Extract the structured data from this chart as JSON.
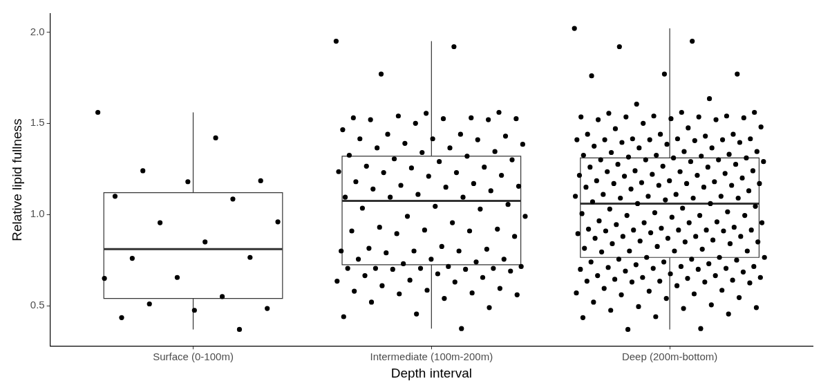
{
  "chart_data": {
    "type": "box",
    "xlabel": "Depth interval",
    "ylabel": "Relative lipid fullness",
    "categories": [
      "Surface (0-100m)",
      "Intermediate (100m-200m)",
      "Deep (200m-bottom)"
    ],
    "boxes": [
      {
        "low": 0.37,
        "q1": 0.54,
        "median": 0.81,
        "q3": 1.12,
        "high": 1.56
      },
      {
        "low": 0.375,
        "q1": 0.725,
        "median": 1.075,
        "q3": 1.32,
        "high": 1.95
      },
      {
        "low": 0.37,
        "q1": 0.765,
        "median": 1.06,
        "q3": 1.31,
        "high": 2.02
      }
    ],
    "series": [
      {
        "type": "scatter",
        "color": "#000000",
        "x": [
          "Surface (0-100m)",
          "Surface (0-100m)",
          "Surface (0-100m)",
          "Surface (0-100m)",
          "Surface (0-100m)",
          "Surface (0-100m)",
          "Surface (0-100m)",
          "Surface (0-100m)",
          "Surface (0-100m)",
          "Surface (0-100m)",
          "Surface (0-100m)",
          "Surface (0-100m)",
          "Surface (0-100m)",
          "Surface (0-100m)",
          "Surface (0-100m)",
          "Surface (0-100m)",
          "Surface (0-100m)",
          "Surface (0-100m)",
          "Surface (0-100m)",
          "Surface (0-100m)"
        ],
        "values": [
          1.56,
          1.42,
          1.24,
          1.185,
          1.18,
          1.1,
          1.085,
          0.955,
          0.96,
          0.85,
          0.76,
          0.765,
          0.655,
          0.65,
          0.55,
          0.51,
          0.485,
          0.475,
          0.435,
          0.37
        ]
      },
      {
        "type": "scatter",
        "color": "#000000",
        "x": [
          "Intermediate (100m-200m)",
          "Intermediate (100m-200m)",
          "Intermediate (100m-200m)",
          "Intermediate (100m-200m)",
          "Intermediate (100m-200m)",
          "Intermediate (100m-200m)",
          "Intermediate (100m-200m)",
          "Intermediate (100m-200m)",
          "Intermediate (100m-200m)",
          "Intermediate (100m-200m)",
          "Intermediate (100m-200m)",
          "Intermediate (100m-200m)",
          "Intermediate (100m-200m)",
          "Intermediate (100m-200m)",
          "Intermediate (100m-200m)",
          "Intermediate (100m-200m)",
          "Intermediate (100m-200m)",
          "Intermediate (100m-200m)",
          "Intermediate (100m-200m)",
          "Intermediate (100m-200m)",
          "Intermediate (100m-200m)",
          "Intermediate (100m-200m)",
          "Intermediate (100m-200m)",
          "Intermediate (100m-200m)",
          "Intermediate (100m-200m)",
          "Intermediate (100m-200m)",
          "Intermediate (100m-200m)",
          "Intermediate (100m-200m)",
          "Intermediate (100m-200m)",
          "Intermediate (100m-200m)",
          "Intermediate (100m-200m)",
          "Intermediate (100m-200m)",
          "Intermediate (100m-200m)",
          "Intermediate (100m-200m)",
          "Intermediate (100m-200m)",
          "Intermediate (100m-200m)",
          "Intermediate (100m-200m)",
          "Intermediate (100m-200m)",
          "Intermediate (100m-200m)",
          "Intermediate (100m-200m)",
          "Intermediate (100m-200m)",
          "Intermediate (100m-200m)",
          "Intermediate (100m-200m)",
          "Intermediate (100m-200m)",
          "Intermediate (100m-200m)",
          "Intermediate (100m-200m)",
          "Intermediate (100m-200m)",
          "Intermediate (100m-200m)",
          "Intermediate (100m-200m)",
          "Intermediate (100m-200m)",
          "Intermediate (100m-200m)",
          "Intermediate (100m-200m)",
          "Intermediate (100m-200m)",
          "Intermediate (100m-200m)",
          "Intermediate (100m-200m)",
          "Intermediate (100m-200m)",
          "Intermediate (100m-200m)",
          "Intermediate (100m-200m)",
          "Intermediate (100m-200m)",
          "Intermediate (100m-200m)",
          "Intermediate (100m-200m)",
          "Intermediate (100m-200m)",
          "Intermediate (100m-200m)",
          "Intermediate (100m-200m)",
          "Intermediate (100m-200m)",
          "Intermediate (100m-200m)",
          "Intermediate (100m-200m)",
          "Intermediate (100m-200m)",
          "Intermediate (100m-200m)",
          "Intermediate (100m-200m)",
          "Intermediate (100m-200m)",
          "Intermediate (100m-200m)",
          "Intermediate (100m-200m)",
          "Intermediate (100m-200m)",
          "Intermediate (100m-200m)",
          "Intermediate (100m-200m)",
          "Intermediate (100m-200m)",
          "Intermediate (100m-200m)",
          "Intermediate (100m-200m)",
          "Intermediate (100m-200m)",
          "Intermediate (100m-200m)",
          "Intermediate (100m-200m)",
          "Intermediate (100m-200m)",
          "Intermediate (100m-200m)",
          "Intermediate (100m-200m)",
          "Intermediate (100m-200m)",
          "Intermediate (100m-200m)",
          "Intermediate (100m-200m)",
          "Intermediate (100m-200m)",
          "Intermediate (100m-200m)",
          "Intermediate (100m-200m)",
          "Intermediate (100m-200m)",
          "Intermediate (100m-200m)",
          "Intermediate (100m-200m)",
          "Intermediate (100m-200m)",
          "Intermediate (100m-200m)",
          "Intermediate (100m-200m)",
          "Intermediate (100m-200m)",
          "Intermediate (100m-200m)",
          "Intermediate (100m-200m)",
          "Intermediate (100m-200m)",
          "Intermediate (100m-200m)",
          "Intermediate (100m-200m)",
          "Intermediate (100m-200m)"
        ],
        "values": [
          1.95,
          1.92,
          1.77,
          1.56,
          1.555,
          1.53,
          1.53,
          1.54,
          1.525,
          1.525,
          1.52,
          1.52,
          1.5,
          1.465,
          1.44,
          1.44,
          1.43,
          1.415,
          1.415,
          1.41,
          1.39,
          1.385,
          1.365,
          1.365,
          1.345,
          1.34,
          1.325,
          1.32,
          1.305,
          1.3,
          1.29,
          1.265,
          1.26,
          1.255,
          1.235,
          1.23,
          1.23,
          1.215,
          1.21,
          1.18,
          1.17,
          1.16,
          1.155,
          1.15,
          1.14,
          1.13,
          1.11,
          1.095,
          1.095,
          1.095,
          1.055,
          1.045,
          1.035,
          1.03,
          0.99,
          0.99,
          0.955,
          0.93,
          0.92,
          0.915,
          0.91,
          0.91,
          0.895,
          0.88,
          0.825,
          0.815,
          0.81,
          0.8,
          0.8,
          0.8,
          0.79,
          0.755,
          0.755,
          0.755,
          0.74,
          0.73,
          0.715,
          0.715,
          0.705,
          0.705,
          0.705,
          0.705,
          0.7,
          0.7,
          0.69,
          0.675,
          0.665,
          0.655,
          0.64,
          0.635,
          0.63,
          0.61,
          0.595,
          0.585,
          0.58,
          0.57,
          0.565,
          0.56,
          0.54,
          0.52,
          0.49,
          0.455,
          0.44,
          0.375
        ]
      },
      {
        "type": "scatter",
        "color": "#000000",
        "x": [
          "Deep (200m-bottom)",
          "Deep (200m-bottom)",
          "Deep (200m-bottom)",
          "Deep (200m-bottom)",
          "Deep (200m-bottom)",
          "Deep (200m-bottom)",
          "Deep (200m-bottom)",
          "Deep (200m-bottom)",
          "Deep (200m-bottom)",
          "Deep (200m-bottom)",
          "Deep (200m-bottom)",
          "Deep (200m-bottom)",
          "Deep (200m-bottom)",
          "Deep (200m-bottom)",
          "Deep (200m-bottom)",
          "Deep (200m-bottom)",
          "Deep (200m-bottom)",
          "Deep (200m-bottom)",
          "Deep (200m-bottom)",
          "Deep (200m-bottom)",
          "Deep (200m-bottom)",
          "Deep (200m-bottom)",
          "Deep (200m-bottom)",
          "Deep (200m-bottom)",
          "Deep (200m-bottom)",
          "Deep (200m-bottom)",
          "Deep (200m-bottom)",
          "Deep (200m-bottom)",
          "Deep (200m-bottom)",
          "Deep (200m-bottom)",
          "Deep (200m-bottom)",
          "Deep (200m-bottom)",
          "Deep (200m-bottom)",
          "Deep (200m-bottom)",
          "Deep (200m-bottom)",
          "Deep (200m-bottom)",
          "Deep (200m-bottom)",
          "Deep (200m-bottom)",
          "Deep (200m-bottom)",
          "Deep (200m-bottom)",
          "Deep (200m-bottom)",
          "Deep (200m-bottom)",
          "Deep (200m-bottom)",
          "Deep (200m-bottom)",
          "Deep (200m-bottom)",
          "Deep (200m-bottom)",
          "Deep (200m-bottom)",
          "Deep (200m-bottom)",
          "Deep (200m-bottom)",
          "Deep (200m-bottom)",
          "Deep (200m-bottom)",
          "Deep (200m-bottom)",
          "Deep (200m-bottom)",
          "Deep (200m-bottom)",
          "Deep (200m-bottom)",
          "Deep (200m-bottom)",
          "Deep (200m-bottom)",
          "Deep (200m-bottom)",
          "Deep (200m-bottom)",
          "Deep (200m-bottom)",
          "Deep (200m-bottom)",
          "Deep (200m-bottom)",
          "Deep (200m-bottom)",
          "Deep (200m-bottom)",
          "Deep (200m-bottom)",
          "Deep (200m-bottom)",
          "Deep (200m-bottom)",
          "Deep (200m-bottom)",
          "Deep (200m-bottom)",
          "Deep (200m-bottom)",
          "Deep (200m-bottom)",
          "Deep (200m-bottom)",
          "Deep (200m-bottom)",
          "Deep (200m-bottom)",
          "Deep (200m-bottom)",
          "Deep (200m-bottom)",
          "Deep (200m-bottom)",
          "Deep (200m-bottom)",
          "Deep (200m-bottom)",
          "Deep (200m-bottom)",
          "Deep (200m-bottom)",
          "Deep (200m-bottom)",
          "Deep (200m-bottom)",
          "Deep (200m-bottom)",
          "Deep (200m-bottom)",
          "Deep (200m-bottom)",
          "Deep (200m-bottom)",
          "Deep (200m-bottom)",
          "Deep (200m-bottom)",
          "Deep (200m-bottom)",
          "Deep (200m-bottom)",
          "Deep (200m-bottom)",
          "Deep (200m-bottom)",
          "Deep (200m-bottom)",
          "Deep (200m-bottom)",
          "Deep (200m-bottom)",
          "Deep (200m-bottom)",
          "Deep (200m-bottom)",
          "Deep (200m-bottom)",
          "Deep (200m-bottom)",
          "Deep (200m-bottom)",
          "Deep (200m-bottom)",
          "Deep (200m-bottom)",
          "Deep (200m-bottom)",
          "Deep (200m-bottom)",
          "Deep (200m-bottom)",
          "Deep (200m-bottom)",
          "Deep (200m-bottom)",
          "Deep (200m-bottom)",
          "Deep (200m-bottom)",
          "Deep (200m-bottom)",
          "Deep (200m-bottom)",
          "Deep (200m-bottom)",
          "Deep (200m-bottom)",
          "Deep (200m-bottom)",
          "Deep (200m-bottom)",
          "Deep (200m-bottom)",
          "Deep (200m-bottom)",
          "Deep (200m-bottom)",
          "Deep (200m-bottom)",
          "Deep (200m-bottom)",
          "Deep (200m-bottom)",
          "Deep (200m-bottom)",
          "Deep (200m-bottom)",
          "Deep (200m-bottom)",
          "Deep (200m-bottom)",
          "Deep (200m-bottom)",
          "Deep (200m-bottom)",
          "Deep (200m-bottom)",
          "Deep (200m-bottom)",
          "Deep (200m-bottom)",
          "Deep (200m-bottom)",
          "Deep (200m-bottom)",
          "Deep (200m-bottom)",
          "Deep (200m-bottom)",
          "Deep (200m-bottom)",
          "Deep (200m-bottom)",
          "Deep (200m-bottom)",
          "Deep (200m-bottom)",
          "Deep (200m-bottom)",
          "Deep (200m-bottom)",
          "Deep (200m-bottom)",
          "Deep (200m-bottom)",
          "Deep (200m-bottom)",
          "Deep (200m-bottom)",
          "Deep (200m-bottom)",
          "Deep (200m-bottom)",
          "Deep (200m-bottom)",
          "Deep (200m-bottom)",
          "Deep (200m-bottom)",
          "Deep (200m-bottom)",
          "Deep (200m-bottom)",
          "Deep (200m-bottom)",
          "Deep (200m-bottom)",
          "Deep (200m-bottom)",
          "Deep (200m-bottom)",
          "Deep (200m-bottom)",
          "Deep (200m-bottom)",
          "Deep (200m-bottom)",
          "Deep (200m-bottom)",
          "Deep (200m-bottom)",
          "Deep (200m-bottom)",
          "Deep (200m-bottom)",
          "Deep (200m-bottom)",
          "Deep (200m-bottom)",
          "Deep (200m-bottom)",
          "Deep (200m-bottom)",
          "Deep (200m-bottom)",
          "Deep (200m-bottom)",
          "Deep (200m-bottom)",
          "Deep (200m-bottom)",
          "Deep (200m-bottom)",
          "Deep (200m-bottom)",
          "Deep (200m-bottom)",
          "Deep (200m-bottom)",
          "Deep (200m-bottom)",
          "Deep (200m-bottom)",
          "Deep (200m-bottom)",
          "Deep (200m-bottom)",
          "Deep (200m-bottom)",
          "Deep (200m-bottom)",
          "Deep (200m-bottom)",
          "Deep (200m-bottom)",
          "Deep (200m-bottom)",
          "Deep (200m-bottom)",
          "Deep (200m-bottom)",
          "Deep (200m-bottom)",
          "Deep (200m-bottom)",
          "Deep (200m-bottom)",
          "Deep (200m-bottom)",
          "Deep (200m-bottom)",
          "Deep (200m-bottom)",
          "Deep (200m-bottom)",
          "Deep (200m-bottom)"
        ],
        "values": [
          2.02,
          1.95,
          1.92,
          1.77,
          1.77,
          1.76,
          1.635,
          1.605,
          1.56,
          1.56,
          1.555,
          1.54,
          1.54,
          1.535,
          1.535,
          1.535,
          1.53,
          1.525,
          1.52,
          1.52,
          1.5,
          1.48,
          1.475,
          1.47,
          1.44,
          1.44,
          1.44,
          1.43,
          1.415,
          1.415,
          1.415,
          1.41,
          1.41,
          1.41,
          1.41,
          1.405,
          1.395,
          1.395,
          1.385,
          1.375,
          1.365,
          1.365,
          1.345,
          1.345,
          1.34,
          1.33,
          1.325,
          1.325,
          1.32,
          1.315,
          1.31,
          1.31,
          1.3,
          1.3,
          1.3,
          1.29,
          1.29,
          1.275,
          1.275,
          1.265,
          1.26,
          1.26,
          1.24,
          1.24,
          1.235,
          1.235,
          1.225,
          1.22,
          1.215,
          1.215,
          1.21,
          1.2,
          1.185,
          1.185,
          1.18,
          1.175,
          1.17,
          1.17,
          1.17,
          1.16,
          1.16,
          1.15,
          1.15,
          1.14,
          1.13,
          1.11,
          1.11,
          1.1,
          1.1,
          1.1,
          1.09,
          1.09,
          1.09,
          1.08,
          1.07,
          1.06,
          1.06,
          1.045,
          1.035,
          1.03,
          1.015,
          1.01,
          1.005,
          0.995,
          0.995,
          0.995,
          0.985,
          0.965,
          0.96,
          0.955,
          0.955,
          0.955,
          0.945,
          0.93,
          0.925,
          0.92,
          0.915,
          0.915,
          0.915,
          0.915,
          0.91,
          0.91,
          0.9,
          0.895,
          0.88,
          0.88,
          0.88,
          0.87,
          0.87,
          0.86,
          0.855,
          0.85,
          0.85,
          0.84,
          0.84,
          0.825,
          0.815,
          0.81,
          0.8,
          0.8,
          0.8,
          0.795,
          0.765,
          0.765,
          0.765,
          0.755,
          0.755,
          0.75,
          0.74,
          0.74,
          0.73,
          0.725,
          0.715,
          0.715,
          0.71,
          0.705,
          0.705,
          0.7,
          0.7,
          0.69,
          0.685,
          0.675,
          0.665,
          0.665,
          0.655,
          0.655,
          0.65,
          0.645,
          0.64,
          0.635,
          0.635,
          0.63,
          0.63,
          0.625,
          0.61,
          0.595,
          0.585,
          0.58,
          0.57,
          0.565,
          0.56,
          0.545,
          0.54,
          0.52,
          0.505,
          0.495,
          0.49,
          0.485,
          0.475,
          0.455,
          0.44,
          0.435,
          0.375,
          0.37
        ]
      }
    ],
    "ylim": [
      0.28,
      2.1
    ],
    "yticks": [
      {
        "value": 0.5,
        "label": "0.5"
      },
      {
        "value": 1,
        "label": "1.0"
      },
      {
        "value": 1.5,
        "label": "1.5"
      },
      {
        "value": 2,
        "label": "2.0"
      }
    ],
    "grid": false,
    "legend": false,
    "marker": "circle"
  }
}
